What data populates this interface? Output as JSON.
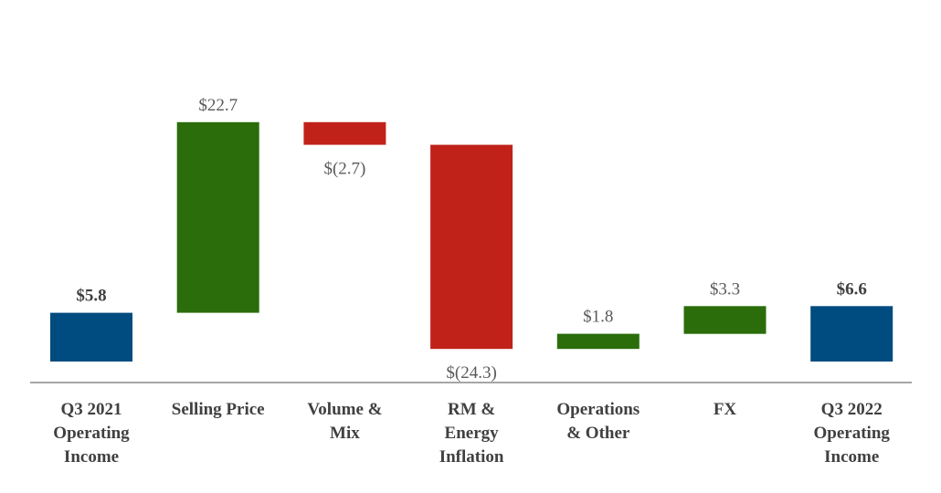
{
  "chart_data": {
    "type": "bar",
    "subtype": "waterfall",
    "title": "",
    "xlabel": "",
    "ylabel": "",
    "grid": false,
    "legend": "none",
    "categories": [
      [
        "Q3 2021",
        "Operating",
        "Income"
      ],
      [
        "Selling Price"
      ],
      [
        "Volume &",
        "Mix"
      ],
      [
        "RM &",
        "Energy",
        "Inflation"
      ],
      [
        "Operations",
        "& Other"
      ],
      [
        "FX"
      ],
      [
        "Q3 2022",
        "Operating",
        "Income"
      ]
    ],
    "steps": [
      {
        "kind": "total",
        "value": 5.8,
        "label": "$5.8"
      },
      {
        "kind": "delta",
        "value": 22.7,
        "label": "$22.7"
      },
      {
        "kind": "delta",
        "value": -2.7,
        "label": "$(2.7)"
      },
      {
        "kind": "delta",
        "value": -24.3,
        "label": "$(24.3)"
      },
      {
        "kind": "delta",
        "value": 1.8,
        "label": "$1.8"
      },
      {
        "kind": "delta",
        "value": 3.3,
        "label": "$3.3"
      },
      {
        "kind": "total",
        "value": 6.6,
        "label": "$6.6"
      }
    ],
    "ylim": [
      -2.5,
      33
    ],
    "colors": {
      "total": "#004b7f",
      "increase": "#2a6d0a",
      "decrease": "#c0221a",
      "axis": "#a6a6a6"
    }
  }
}
